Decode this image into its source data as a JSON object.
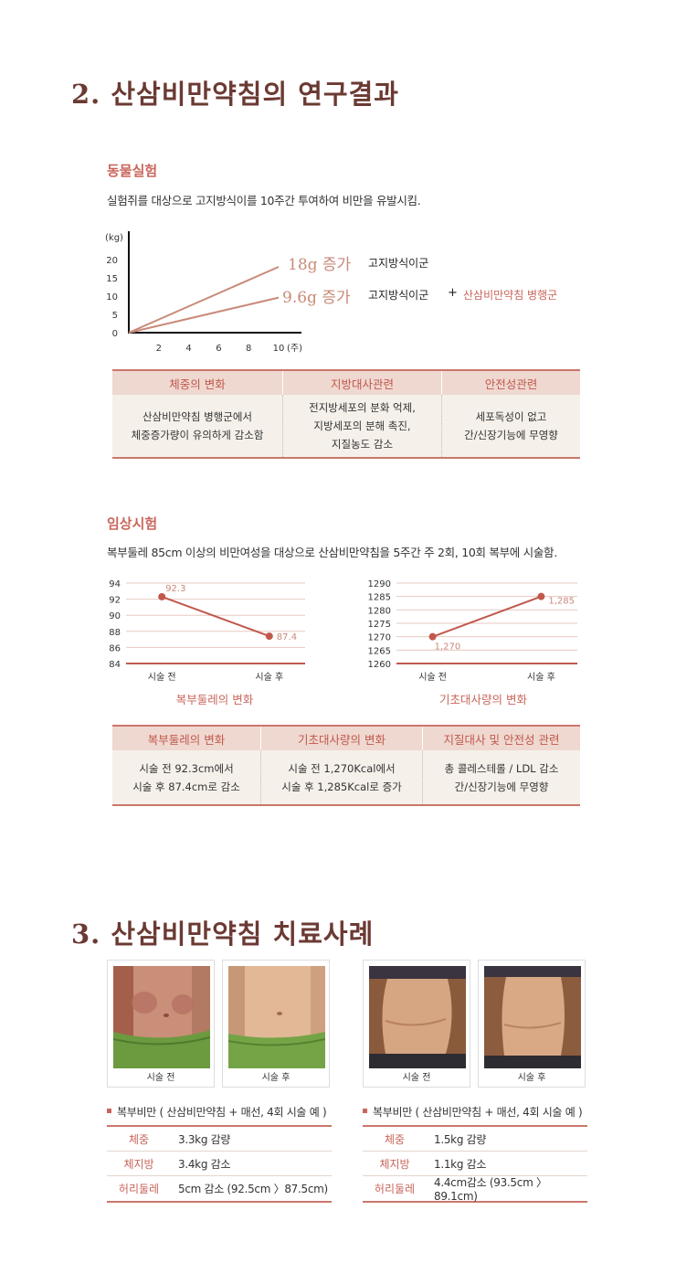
{
  "section2": {
    "title": "2. 산삼비만약침의 연구결과",
    "animal": {
      "subtitle": "동물실험",
      "description": "실험쥐를 대상으로 고지방식이를 10주간 투여하여 비만을 유발시킴.",
      "chart_data": {
        "type": "line",
        "ylabel": "(kg)",
        "xlabel": "(주)",
        "ylim": [
          0,
          20
        ],
        "yticks": [
          "0",
          "5",
          "10",
          "15",
          "20"
        ],
        "xticks": [
          "2",
          "4",
          "6",
          "8",
          "10"
        ],
        "series": [
          {
            "name": "고지방식이군",
            "x": [
              0,
              10
            ],
            "y": [
              0,
              18
            ],
            "label": "18g 증가"
          },
          {
            "name": "고지방식이군 + 산삼비만약침 병행군",
            "x": [
              0,
              10
            ],
            "y": [
              0,
              9.6
            ],
            "label": "9.6g 증가"
          }
        ],
        "color": "#c98a79"
      },
      "legend": {
        "line1_value": "18g 증가",
        "line1_group": "고지방식이군",
        "line2_value": "9.6g 증가",
        "line2_group": "고지방식이군",
        "line2_plus": "+",
        "line2_extra": "산삼비만약침 병행군"
      },
      "table": {
        "headers": [
          "체중의 변화",
          "지방대사관련",
          "안전성관련"
        ],
        "cells": [
          "산삼비만약침 병행군에서\n체중증가량이 유의하게 감소함",
          "전지방세포의 분화 억제,\n지방세포의 분해 촉진,\n지질농도 감소",
          "세포독성이 없고\n간/신장기능에 무영향"
        ]
      }
    },
    "clinical": {
      "subtitle": "임상시험",
      "description": "복부둘레 85cm 이상의 비만여성을 대상으로 산삼비만약침을 5주간 주 2회, 10회 복부에 시술함.",
      "chart_data": [
        {
          "type": "line",
          "categories": [
            "시술 전",
            "시술 후"
          ],
          "values": [
            92.3,
            87.4
          ],
          "data_labels": [
            "92.3",
            "87.4"
          ],
          "ylim": [
            84,
            94
          ],
          "yticks": [
            "84",
            "86",
            "88",
            "90",
            "92",
            "94"
          ],
          "title": "복부둘레의 변화"
        },
        {
          "type": "line",
          "categories": [
            "시술 전",
            "시술 후"
          ],
          "values": [
            1270,
            1285
          ],
          "data_labels": [
            "1,270",
            "1,285"
          ],
          "ylim": [
            1260,
            1290
          ],
          "yticks": [
            "1260",
            "1265",
            "1270",
            "1275",
            "1280",
            "1285",
            "1290"
          ],
          "title": "기초대사량의 변화"
        }
      ],
      "table": {
        "headers": [
          "복부둘레의 변화",
          "기초대사량의 변화",
          "지질대사 및 안전성 관련"
        ],
        "cells": [
          "시술 전 92.3cm에서\n시술 후 87.4cm로 감소",
          "시술 전 1,270Kcal에서\n시술 후 1,285Kcal로 증가",
          "총 콜레스테롤 / LDL 감소\n간/신장기능에 무영향"
        ]
      }
    }
  },
  "section3": {
    "title": "3. 산삼비만약침 치료사례",
    "cases": [
      {
        "before": "시술 전",
        "after": "시술 후",
        "heading": "복부비만 ( 산삼비만약침 + 매선, 4회 시술 예 )",
        "rows": [
          {
            "k": "체중",
            "v": "3.3kg 감량"
          },
          {
            "k": "체지방",
            "v": "3.4kg 감소"
          },
          {
            "k": "허리둘레",
            "v": "5cm 감소 (92.5cm 〉87.5cm)"
          }
        ]
      },
      {
        "before": "시술 전",
        "after": "시술 후",
        "heading": "복부비만 ( 산삼비만약침 + 매선, 4회 시술 예 )",
        "rows": [
          {
            "k": "체중",
            "v": "1.5kg 감량"
          },
          {
            "k": "체지방",
            "v": "1.1kg 감소"
          },
          {
            "k": "허리둘레",
            "v": "4.4cm감소 (93.5cm 〉89.1cm)"
          }
        ]
      }
    ]
  }
}
